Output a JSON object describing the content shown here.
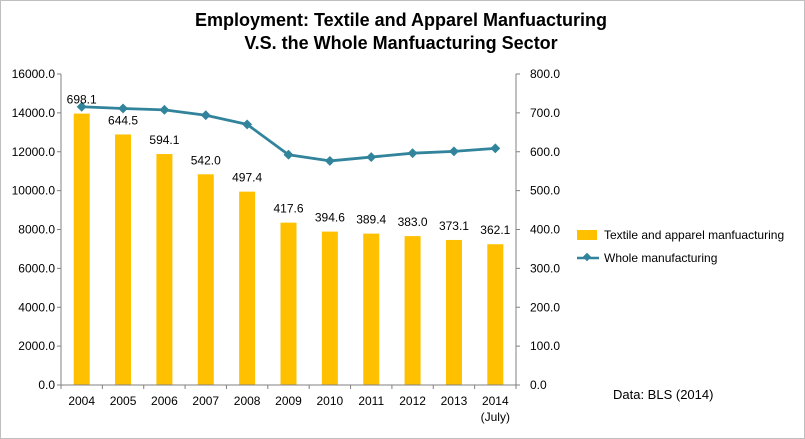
{
  "chart_data": {
    "type": "bar+line",
    "title_line1": "Employment: Textile  and Apparel Manfuacturing",
    "title_line2": "V.S. the Whole Manfuacturing Sector",
    "categories": [
      "2004",
      "2005",
      "2006",
      "2007",
      "2008",
      "2009",
      "2010",
      "2011",
      "2012",
      "2013",
      "2014"
    ],
    "category_sublabels": [
      "",
      "",
      "",
      "",
      "",
      "",
      "",
      "",
      "",
      "",
      "(July)"
    ],
    "left_axis": {
      "min": 0,
      "max": 16000,
      "step": 2000,
      "ticks": [
        "0.0",
        "2000.0",
        "4000.0",
        "6000.0",
        "8000.0",
        "10000.0",
        "12000.0",
        "14000.0",
        "16000.0"
      ]
    },
    "right_axis": {
      "min": 0,
      "max": 800,
      "step": 100,
      "ticks": [
        "0.0",
        "100.0",
        "200.0",
        "300.0",
        "400.0",
        "500.0",
        "600.0",
        "700.0",
        "800.0"
      ]
    },
    "series": [
      {
        "name": "Textile and apparel manfuacturing",
        "kind": "bar",
        "axis": "right",
        "color": "#ffc000",
        "values": [
          698.1,
          644.5,
          594.1,
          542.0,
          497.4,
          417.6,
          394.6,
          389.4,
          383.0,
          373.1,
          362.1
        ],
        "labels": [
          "698.1",
          "644.5",
          "594.1",
          "542.0",
          "497.4",
          "417.6",
          "394.6",
          "389.4",
          "383.0",
          "373.1",
          "362.1"
        ]
      },
      {
        "name": "Whole manufacturing",
        "kind": "line",
        "axis": "left",
        "color": "#31849b",
        "values": [
          14315,
          14227,
          14155,
          13879,
          13406,
          11847,
          11528,
          11726,
          11927,
          12020,
          12175
        ]
      }
    ],
    "legend_position": "right",
    "grid": false,
    "source_note": "Data: BLS (2014)"
  }
}
